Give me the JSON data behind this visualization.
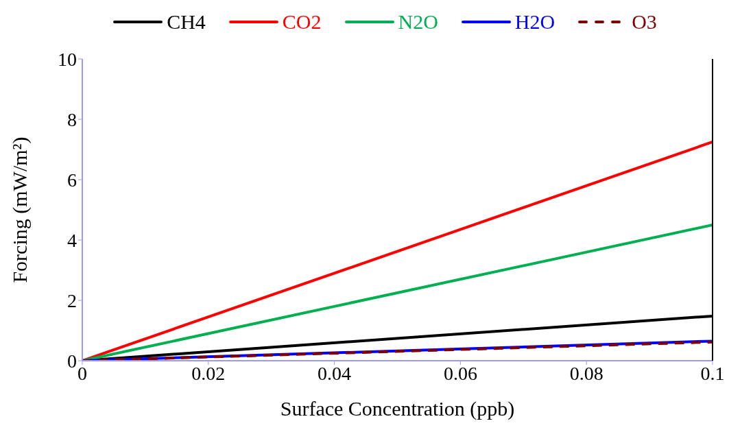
{
  "chart_data": {
    "type": "line",
    "xlabel": "Surface Concentration (ppb)",
    "ylabel": "Forcing (mW/m²)",
    "x": [
      0,
      0.1
    ],
    "series": [
      {
        "name": "CH4",
        "color": "#000000",
        "values": [
          0,
          1.48
        ]
      },
      {
        "name": "CO2",
        "color": "#ff0000",
        "values": [
          0,
          7.25
        ]
      },
      {
        "name": "N2O",
        "color": "#00b050",
        "values": [
          0,
          4.5
        ]
      },
      {
        "name": "H2O",
        "color": "#0000ff",
        "values": [
          0,
          0.65
        ]
      },
      {
        "name": "O3",
        "color": "#7f0000",
        "values": [
          0,
          0.62
        ],
        "line_style": "dashed"
      }
    ],
    "xlim": [
      0,
      0.1
    ],
    "xticks": [
      0,
      0.02,
      0.04,
      0.06,
      0.08,
      0.1
    ],
    "ylim": [
      0,
      10
    ],
    "yticks": [
      0,
      2,
      4,
      6,
      8,
      10
    ],
    "grid": false,
    "legend": "top",
    "marker": "none",
    "line_style": "solid"
  }
}
